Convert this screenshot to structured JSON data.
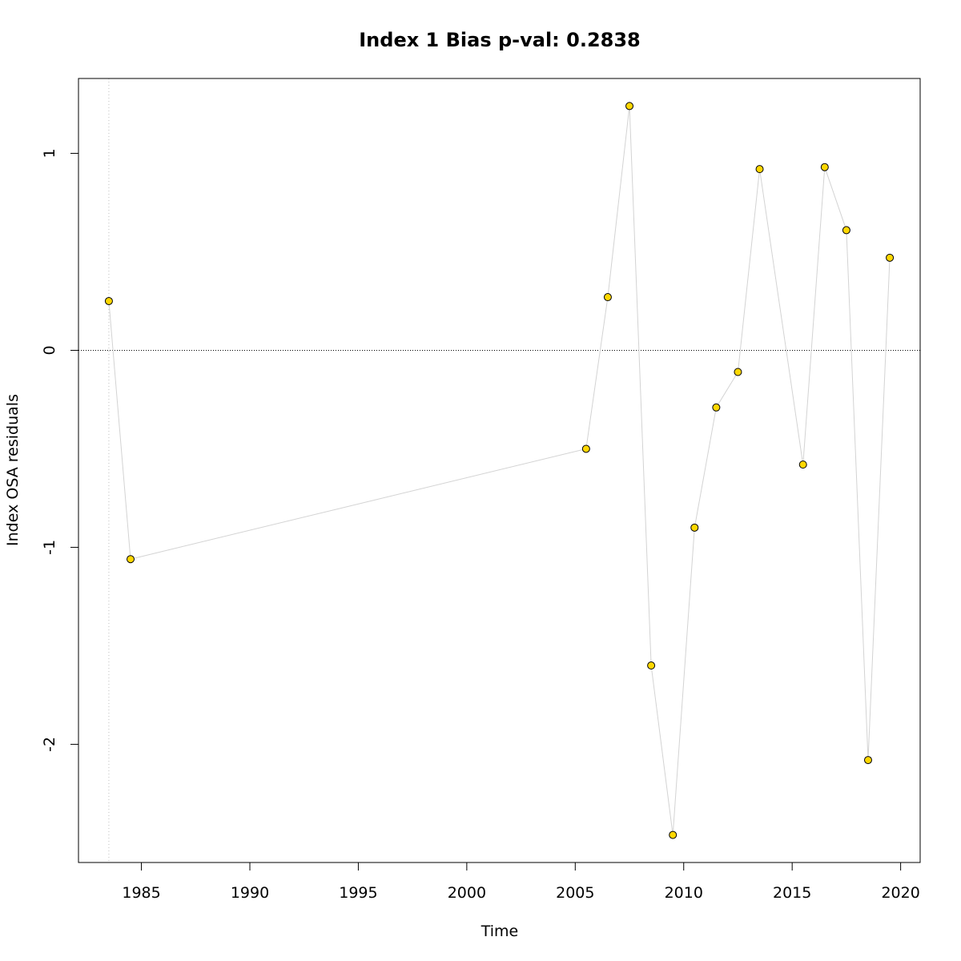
{
  "chart_data": {
    "type": "scatter",
    "title": "Index 1 Bias p-val: 0.2838",
    "title_color": "#228B22",
    "xlabel": "Time",
    "ylabel": "Index OSA residuals",
    "xlim": [
      1982.1,
      2020.9
    ],
    "ylim": [
      -2.6,
      1.38
    ],
    "xticks": [
      1985,
      1990,
      1995,
      2000,
      2005,
      2010,
      2015,
      2020
    ],
    "xtick_labels": [
      "1985",
      "1990",
      "1995",
      "2000",
      "2005",
      "2010",
      "2015",
      "2020"
    ],
    "yticks": [
      -2,
      -1,
      0,
      1
    ],
    "ytick_labels": [
      "-2",
      "-1",
      "0",
      "1"
    ],
    "reference_line_y": 0,
    "reference_line_x": 1983.5,
    "connect_points": true,
    "grid": false,
    "point_color": "#FFD700",
    "line_color": "#D3D3D3",
    "series": [
      {
        "x": [
          1983.5,
          1984.5,
          2005.5,
          2006.5,
          2007.5,
          2008.5,
          2009.5,
          2010.5,
          2011.5,
          2012.5,
          2013.5,
          2015.5,
          2016.5,
          2017.5,
          2018.5,
          2019.5
        ],
        "y": [
          0.25,
          -1.06,
          -0.5,
          0.27,
          1.24,
          -1.6,
          -2.46,
          -0.9,
          -0.29,
          -0.11,
          0.92,
          -0.58,
          0.93,
          0.61,
          -2.08,
          0.47
        ]
      }
    ]
  }
}
